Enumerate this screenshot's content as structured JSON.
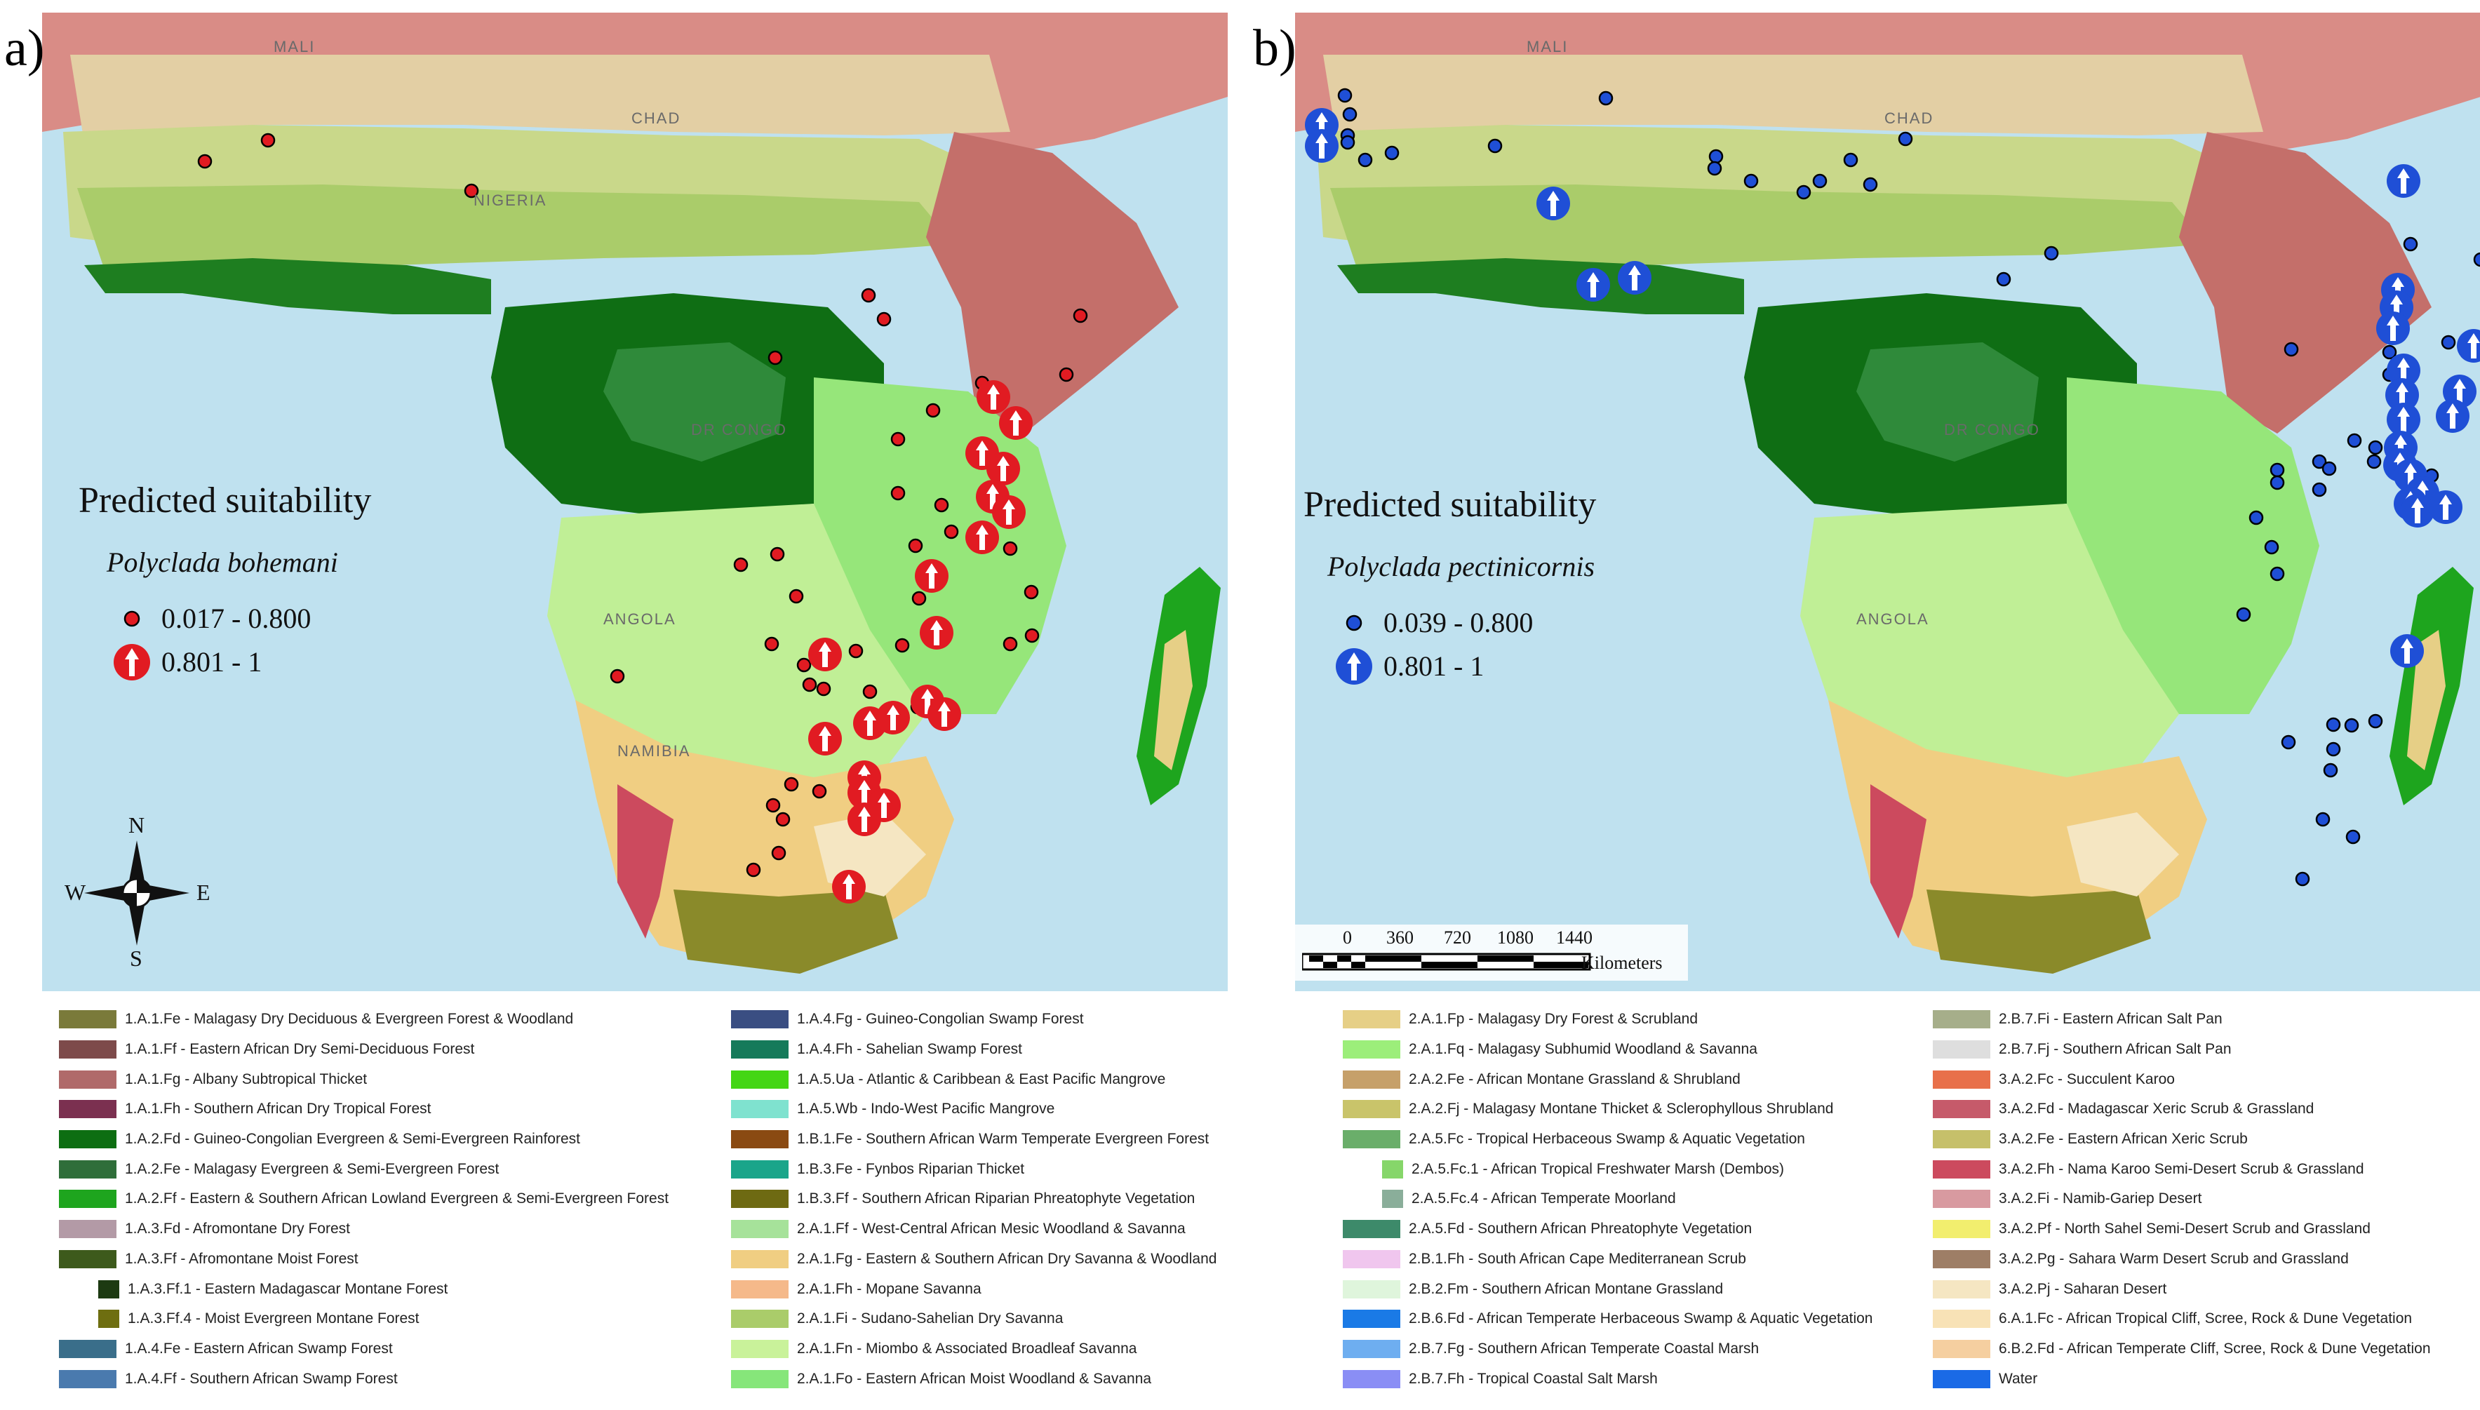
{
  "panel_a": {
    "letter": "a)",
    "title": "Predicted suitability",
    "species": "Polyclada bohemani",
    "range_low": "0.017 - 0.800",
    "range_high": "0.801 - 1",
    "marker_color": "#e11b22",
    "map_labels": [
      "MALI",
      "CHAD",
      "NIGERIA",
      "DR CONGO",
      "ANGOLA",
      "NAMIBIA"
    ],
    "compass": {
      "n": "N",
      "s": "S",
      "e": "E",
      "w": "W"
    }
  },
  "panel_b": {
    "letter": "b)",
    "title": "Predicted suitability",
    "species": "Polyclada pectinicornis",
    "range_low": "0.039 - 0.800",
    "range_high": "0.801 - 1",
    "marker_color": "#1f4fd6",
    "map_labels": [
      "MALI",
      "CHAD",
      "DR CONGO",
      "ANGOLA"
    ],
    "scale_bar": {
      "ticks": [
        "0",
        "360",
        "720",
        "1080",
        "1440"
      ],
      "unit": "Kilometers"
    }
  },
  "legend": {
    "col1": [
      {
        "code": "1.A.1.Fe - Malagasy Dry Deciduous & Evergreen Forest & Woodland",
        "color": "#7a7a3a"
      },
      {
        "code": "1.A.1.Ff - Eastern African Dry Semi-Deciduous Forest",
        "color": "#7d4a4a"
      },
      {
        "code": "1.A.1.Fg - Albany Subtropical Thicket",
        "color": "#b06a6a"
      },
      {
        "code": "1.A.1.Fh - Southern African Dry Tropical Forest",
        "color": "#7b3050"
      },
      {
        "code": "1.A.2.Fd - Guineo-Congolian Evergreen & Semi-Evergreen Rainforest",
        "color": "#0d6e12"
      },
      {
        "code": "1.A.2.Fe - Malagasy Evergreen & Semi-Evergreen Forest",
        "color": "#2f6e3a"
      },
      {
        "code": "1.A.2.Ff  - Eastern & Southern African Lowland Evergreen & Semi-Evergreen Forest",
        "color": "#1ea51e"
      },
      {
        "code": "1.A.3.Fd - Afromontane Dry Forest",
        "color": "#b39aa6"
      },
      {
        "code": "1.A.3.Ff - Afromontane Moist Forest",
        "color": "#3d5a1c"
      },
      {
        "code": "1.A.3.Ff.1 - Eastern Madagascar Montane Forest",
        "color": "#1d3a12",
        "indent": true
      },
      {
        "code": "1.A.3.Ff.4 - Moist Evergreen Montane Forest",
        "color": "#6e6e10",
        "indent": true
      },
      {
        "code": "1.A.4.Fe - Eastern African Swamp Forest",
        "color": "#3a6e8a"
      },
      {
        "code": "1.A.4.Ff - Southern African Swamp Forest",
        "color": "#4a7aae"
      }
    ],
    "col2": [
      {
        "code": "1.A.4.Fg - Guineo-Congolian Swamp Forest",
        "color": "#3a4e82"
      },
      {
        "code": "1.A.4.Fh - Sahelian Swamp Forest",
        "color": "#157a5a"
      },
      {
        "code": "1.A.5.Ua - Atlantic & Caribbean & East Pacific Mangrove",
        "color": "#44d614"
      },
      {
        "code": "1.A.5.Wb - Indo-West Pacific Mangrove",
        "color": "#7fe2cf"
      },
      {
        "code": "1.B.1.Fe - Southern African Warm Temperate Evergreen Forest",
        "color": "#8a4a12"
      },
      {
        "code": "1.B.3.Fe - Fynbos Riparian Thicket",
        "color": "#1aa58a"
      },
      {
        "code": "1.B.3.Ff - Southern African Riparian Phreatophyte Vegetation",
        "color": "#6e6a12"
      },
      {
        "code": "2.A.1.Ff - West-Central African Mesic Woodland & Savanna",
        "color": "#a6e29a"
      },
      {
        "code": "2.A.1.Fg - Eastern & Southern African Dry Savanna   & Woodland",
        "color": "#f0ce82"
      },
      {
        "code": "2.A.1.Fh - Mopane Savanna",
        "color": "#f5b98a"
      },
      {
        "code": "2.A.1.Fi - Sudano-Sahelian Dry Savanna",
        "color": "#aacc6a"
      },
      {
        "code": "2.A.1.Fn - Miombo & Associated Broadleaf Savanna",
        "color": "#c9f29a"
      },
      {
        "code": "2.A.1.Fo - Eastern African Moist Woodland & Savanna",
        "color": "#86e67a"
      }
    ],
    "col3": [
      {
        "code": "2.A.1.Fp - Malagasy Dry Forest & Scrubland",
        "color": "#e6cf86"
      },
      {
        "code": "2.A.1.Fq - Malagasy Subhumid Woodland & Savanna",
        "color": "#9cee7a"
      },
      {
        "code": "2.A.2.Fe - African Montane Grassland & Shrubland",
        "color": "#c6a06a"
      },
      {
        "code": "2.A.2.Fj - Malagasy Montane Thicket & Sclerophyllous Shrubland",
        "color": "#c9c46a"
      },
      {
        "code": "2.A.5.Fc - Tropical Herbaceous Swamp & Aquatic Vegetation",
        "color": "#6aae6a"
      },
      {
        "code": "2.A.5.Fc.1 - African Tropical Freshwater Marsh (Dembos)",
        "color": "#86d66a",
        "indent": true
      },
      {
        "code": "2.A.5.Fc.4 - African Temperate Moorland",
        "color": "#8aae9a",
        "indent": true
      },
      {
        "code": "2.A.5.Fd - Southern African Phreatophyte Vegetation",
        "color": "#3d8a6a"
      },
      {
        "code": "2.B.1.Fh - South African Cape Mediterranean Scrub",
        "color": "#f0c6ee"
      },
      {
        "code": "2.B.2.Fm - Southern African Montane Grassland",
        "color": "#dff5dc"
      },
      {
        "code": "2.B.6.Fd - African Temperate Herbaceous Swamp & Aquatic Vegetation",
        "color": "#1a7ae6"
      },
      {
        "code": "2.B.7.Fg - Southern African Temperate Coastal Marsh",
        "color": "#6eaef0"
      },
      {
        "code": "2.B.7.Fh - Tropical Coastal Salt Marsh",
        "color": "#8a8ef5"
      }
    ],
    "col4": [
      {
        "code": "2.B.7.Fi - Eastern African Salt Pan",
        "color": "#a6ae8a"
      },
      {
        "code": "2.B.7.Fj - Southern African Salt Pan",
        "color": "#dedede"
      },
      {
        "code": "3.A.2.Fc - Succulent Karoo",
        "color": "#e8704a"
      },
      {
        "code": "3.A.2.Fd - Madagascar Xeric Scrub & Grassland",
        "color": "#c65a6a"
      },
      {
        "code": "3.A.2.Fe - Eastern African Xeric Scrub",
        "color": "#c6c06a"
      },
      {
        "code": "3.A.2.Fh - Nama Karoo Semi-Desert Scrub & Grassland",
        "color": "#cc4a5e"
      },
      {
        "code": "3.A.2.Fi - Namib-Gariep Desert",
        "color": "#d89aa0"
      },
      {
        "code": "3.A.2.Pf - North Sahel Semi-Desert Scrub and Grassland",
        "color": "#f2ee6e"
      },
      {
        "code": "3.A.2.Pg - Sahara Warm Desert Scrub and Grassland",
        "color": "#9e7e66"
      },
      {
        "code": "3.A.2.Pj - Saharan Desert",
        "color": "#f5e6c2"
      },
      {
        "code": "6.A.1.Fc - African Tropical Cliff, Scree, Rock & Dune Vegetation",
        "color": "#f8e2b6"
      },
      {
        "code": "6.B.2.Fd - African Temperate Cliff, Scree, Rock & Dune Vegetation",
        "color": "#f5cfa0"
      },
      {
        "code": "Water",
        "color": "#1a6ae6"
      }
    ]
  }
}
